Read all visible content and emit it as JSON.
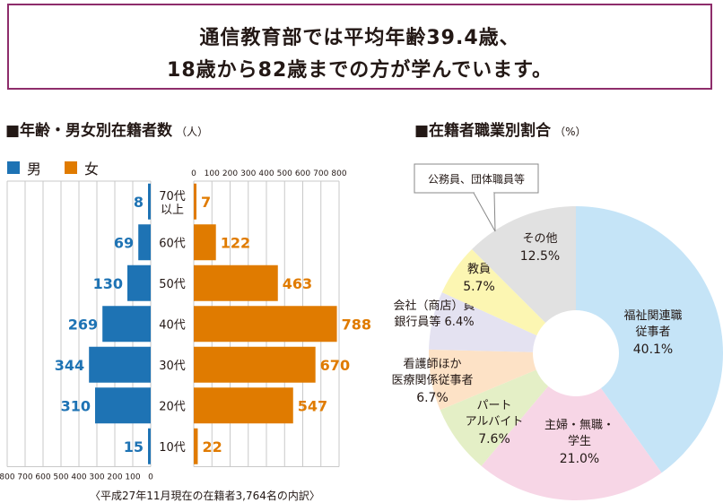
{
  "headline": {
    "line1": "通信教育部では平均年齢39.4歳、",
    "line2": "18歳から82歳までの方が学んでいます。"
  },
  "colors": {
    "frame": "#8e2d6b",
    "male": "#1e73b4",
    "female": "#e07b00",
    "grid": "#c9c9c9"
  },
  "age_chart": {
    "title": "■年齢・男女別在籍者数",
    "unit": "（人）",
    "legend_male": "男",
    "legend_female": "女",
    "footnote": "〈平成27年11月現在の在籍者3,764名の内訳〉"
  },
  "job_chart": {
    "title": "■在籍者職業別割合",
    "unit": "（%）"
  },
  "chart_data": [
    {
      "type": "bar",
      "title": "年齢・男女別在籍者数（人）",
      "orientation": "horizontal-pyramid",
      "categories": [
        "70代以上",
        "60代",
        "50代",
        "40代",
        "30代",
        "20代",
        "10代"
      ],
      "category_lines": [
        [
          "70代",
          "以上"
        ],
        [
          "60代"
        ],
        [
          "50代"
        ],
        [
          "40代"
        ],
        [
          "30代"
        ],
        [
          "20代"
        ],
        [
          "10代"
        ]
      ],
      "series": [
        {
          "name": "男",
          "values": [
            8,
            69,
            130,
            269,
            344,
            310,
            15
          ]
        },
        {
          "name": "女",
          "values": [
            7,
            122,
            463,
            788,
            670,
            547,
            22
          ]
        }
      ],
      "xlim": [
        0,
        800
      ],
      "ticks_female": [
        "0",
        "100",
        "200",
        "300",
        "400",
        "500",
        "600",
        "700",
        "800"
      ],
      "ticks_male": [
        "800",
        "700",
        "600",
        "500",
        "400",
        "300",
        "200",
        "100",
        "0"
      ],
      "grid": true
    },
    {
      "type": "pie",
      "title": "在籍者職業別割合（%）",
      "donut": true,
      "slices": [
        {
          "label_lines": [
            "福祉関連職",
            "従事者"
          ],
          "value_label": "40.1%",
          "value": 40.1,
          "color": "#c5e4f7"
        },
        {
          "label_lines": [
            "主婦・無職・",
            "学生"
          ],
          "value_label": "21.0%",
          "value": 21.0,
          "color": "#f7d6e6"
        },
        {
          "label_lines": [
            "パート",
            "アルバイト"
          ],
          "value_label": "7.6%",
          "value": 7.6,
          "color": "#e4efc6"
        },
        {
          "label_lines": [
            "看護師ほか",
            "医療関係従事者"
          ],
          "value_label": "6.7%",
          "value": 6.7,
          "color": "#fde2c6"
        },
        {
          "label_lines": [
            "会社（商店）員",
            "銀行員等"
          ],
          "value_label": "6.4%",
          "value": 6.4,
          "color": "#e4e2f1"
        },
        {
          "label_lines": [
            "教員"
          ],
          "value_label": "5.7%",
          "value": 5.7,
          "color": "#fcf6b2"
        },
        {
          "label_lines": [
            "その他"
          ],
          "value_label": "12.5%",
          "value": 12.5,
          "color": "#e1e1e1"
        }
      ],
      "callout": "公務員、団体職員等"
    }
  ]
}
